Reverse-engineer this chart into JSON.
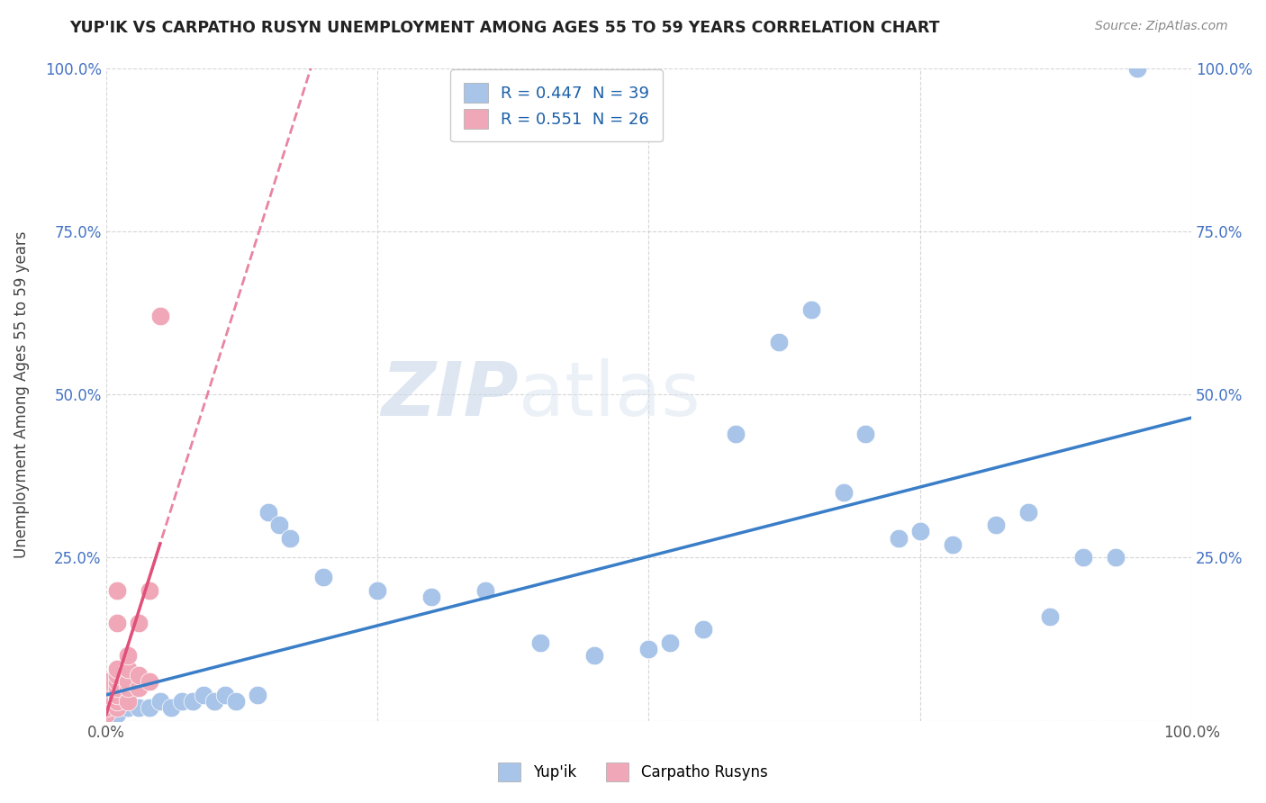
{
  "title": "YUP'IK VS CARPATHO RUSYN UNEMPLOYMENT AMONG AGES 55 TO 59 YEARS CORRELATION CHART",
  "source": "Source: ZipAtlas.com",
  "ylabel": "Unemployment Among Ages 55 to 59 years",
  "legend_labels": [
    "Yup'ik",
    "Carpatho Rusyns"
  ],
  "yupik_R": "0.447",
  "yupik_N": "39",
  "carpatho_R": "0.551",
  "carpatho_N": "26",
  "xlim": [
    0,
    1.0
  ],
  "ylim": [
    0,
    1.0
  ],
  "xtick_vals": [
    0,
    0.25,
    0.5,
    0.75,
    1.0
  ],
  "xtick_labels": [
    "0.0%",
    "",
    "",
    "",
    "100.0%"
  ],
  "ytick_vals": [
    0,
    0.25,
    0.5,
    0.75,
    1.0
  ],
  "ytick_labels": [
    "",
    "25.0%",
    "50.0%",
    "75.0%",
    "100.0%"
  ],
  "yupik_color": "#a8c4e8",
  "carpatho_color": "#f0a8b8",
  "yupik_line_color": "#3a7ec8",
  "carpatho_line_color": "#e0507a",
  "watermark_zip": "ZIP",
  "watermark_atlas": "atlas",
  "yupik_x": [
    0.01,
    0.02,
    0.03,
    0.04,
    0.05,
    0.06,
    0.07,
    0.08,
    0.09,
    0.1,
    0.11,
    0.12,
    0.14,
    0.15,
    0.16,
    0.17,
    0.2,
    0.25,
    0.3,
    0.35,
    0.4,
    0.45,
    0.5,
    0.52,
    0.55,
    0.58,
    0.62,
    0.65,
    0.68,
    0.7,
    0.73,
    0.75,
    0.78,
    0.82,
    0.85,
    0.87,
    0.9,
    0.93,
    0.95
  ],
  "yupik_y": [
    0.01,
    0.02,
    0.02,
    0.02,
    0.03,
    0.02,
    0.03,
    0.03,
    0.04,
    0.03,
    0.04,
    0.03,
    0.04,
    0.32,
    0.3,
    0.28,
    0.22,
    0.2,
    0.19,
    0.2,
    0.12,
    0.1,
    0.11,
    0.12,
    0.14,
    0.44,
    0.58,
    0.63,
    0.35,
    0.44,
    0.28,
    0.29,
    0.27,
    0.3,
    0.32,
    0.16,
    0.25,
    0.25,
    1.0
  ],
  "carpatho_x": [
    0.0,
    0.0,
    0.0,
    0.0,
    0.0,
    0.0,
    0.01,
    0.01,
    0.01,
    0.01,
    0.01,
    0.01,
    0.01,
    0.01,
    0.01,
    0.02,
    0.02,
    0.02,
    0.02,
    0.02,
    0.03,
    0.03,
    0.03,
    0.04,
    0.04,
    0.05
  ],
  "carpatho_y": [
    0.01,
    0.02,
    0.03,
    0.04,
    0.05,
    0.06,
    0.02,
    0.03,
    0.04,
    0.05,
    0.06,
    0.07,
    0.08,
    0.15,
    0.2,
    0.03,
    0.05,
    0.06,
    0.08,
    0.1,
    0.05,
    0.07,
    0.15,
    0.06,
    0.2,
    0.62
  ]
}
